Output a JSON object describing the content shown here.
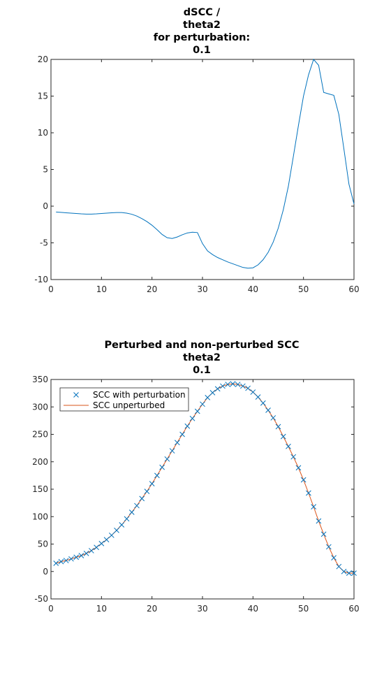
{
  "chart_data": [
    {
      "type": "line",
      "title": [
        "dSCC /",
        "theta2",
        "for perturbation:",
        "0.1"
      ],
      "xlim": [
        0,
        60
      ],
      "ylim": [
        -10,
        20
      ],
      "xticks": [
        0,
        10,
        20,
        30,
        40,
        50,
        60
      ],
      "yticks": [
        -10,
        -5,
        0,
        5,
        10,
        15,
        20
      ],
      "xlabel": "",
      "ylabel": "",
      "grid": false,
      "series": [
        {
          "name": "dSCC",
          "color": "#0072bd",
          "x": [
            1,
            2,
            3,
            4,
            5,
            6,
            7,
            8,
            9,
            10,
            11,
            12,
            13,
            14,
            15,
            16,
            17,
            18,
            19,
            20,
            21,
            22,
            23,
            24,
            25,
            26,
            27,
            28,
            29,
            30,
            31,
            32,
            33,
            34,
            35,
            36,
            37,
            38,
            39,
            40,
            41,
            42,
            43,
            44,
            45,
            46,
            47,
            48,
            49,
            50,
            51,
            52,
            53,
            54,
            55,
            56,
            57,
            58,
            59,
            60
          ],
          "values": [
            -0.8,
            -0.85,
            -0.9,
            -0.95,
            -1.0,
            -1.05,
            -1.08,
            -1.08,
            -1.05,
            -1.0,
            -0.95,
            -0.9,
            -0.87,
            -0.87,
            -0.95,
            -1.1,
            -1.35,
            -1.7,
            -2.1,
            -2.6,
            -3.2,
            -3.85,
            -4.3,
            -4.4,
            -4.2,
            -3.9,
            -3.65,
            -3.55,
            -3.6,
            -5.1,
            -6.1,
            -6.6,
            -7.0,
            -7.3,
            -7.6,
            -7.85,
            -8.1,
            -8.35,
            -8.45,
            -8.4,
            -8.0,
            -7.3,
            -6.3,
            -4.9,
            -3.0,
            -0.5,
            2.7,
            6.8,
            11.0,
            15.0,
            17.9,
            20.0,
            19.2,
            15.5,
            15.3,
            15.1,
            12.5,
            7.8,
            3.0,
            0.3
          ]
        }
      ]
    },
    {
      "type": "line",
      "title": [
        "Perturbed and non-perturbed SCC",
        "theta2",
        "0.1"
      ],
      "xlim": [
        0,
        60
      ],
      "ylim": [
        -50,
        350
      ],
      "xticks": [
        0,
        10,
        20,
        30,
        40,
        50,
        60
      ],
      "yticks": [
        -50,
        0,
        50,
        100,
        150,
        200,
        250,
        300,
        350
      ],
      "xlabel": "",
      "ylabel": "",
      "grid": false,
      "legend": {
        "position": "top-left",
        "entries": [
          "SCC with perturbation",
          "SCC unperturbed"
        ]
      },
      "series": [
        {
          "name": "SCC with perturbation",
          "style": "markers-x",
          "color": "#0072bd",
          "x": [
            1,
            2,
            3,
            4,
            5,
            6,
            7,
            8,
            9,
            10,
            11,
            12,
            13,
            14,
            15,
            16,
            17,
            18,
            19,
            20,
            21,
            22,
            23,
            24,
            25,
            26,
            27,
            28,
            29,
            30,
            31,
            32,
            33,
            34,
            35,
            36,
            37,
            38,
            39,
            40,
            41,
            42,
            43,
            44,
            45,
            46,
            47,
            48,
            49,
            50,
            51,
            52,
            53,
            54,
            55,
            56,
            57,
            58,
            59,
            60
          ],
          "values": [
            15,
            18,
            20,
            23,
            26,
            29,
            33,
            38,
            44,
            51,
            58,
            66,
            75,
            85,
            96,
            108,
            120,
            133,
            146,
            160,
            175,
            190,
            205,
            220,
            235,
            250,
            265,
            279,
            292,
            305,
            317,
            326,
            333,
            338,
            341,
            342,
            341,
            338,
            334,
            327,
            318,
            307,
            294,
            280,
            264,
            246,
            228,
            209,
            189,
            167,
            143,
            118,
            92,
            68,
            45,
            25,
            9,
            0,
            -3,
            -3
          ]
        },
        {
          "name": "SCC unperturbed",
          "style": "line",
          "color": "#d95319",
          "x": [
            1,
            2,
            3,
            4,
            5,
            6,
            7,
            8,
            9,
            10,
            11,
            12,
            13,
            14,
            15,
            16,
            17,
            18,
            19,
            20,
            21,
            22,
            23,
            24,
            25,
            26,
            27,
            28,
            29,
            30,
            31,
            32,
            33,
            34,
            35,
            36,
            37,
            38,
            39,
            40,
            41,
            42,
            43,
            44,
            45,
            46,
            47,
            48,
            49,
            50,
            51,
            52,
            53,
            54,
            55,
            56,
            57,
            58,
            59,
            60
          ],
          "values": [
            15,
            18,
            20,
            23,
            26,
            29,
            33,
            38,
            44,
            51,
            58,
            66,
            75,
            85,
            96,
            108,
            120,
            133,
            146,
            160,
            175,
            190,
            205,
            220,
            235,
            250,
            265,
            279,
            292,
            305,
            317,
            326,
            333,
            338,
            341,
            342,
            341,
            338,
            334,
            327,
            318,
            307,
            294,
            280,
            264,
            246,
            228,
            209,
            189,
            167,
            143,
            118,
            92,
            68,
            45,
            25,
            9,
            0,
            -3,
            -3
          ]
        }
      ]
    }
  ]
}
